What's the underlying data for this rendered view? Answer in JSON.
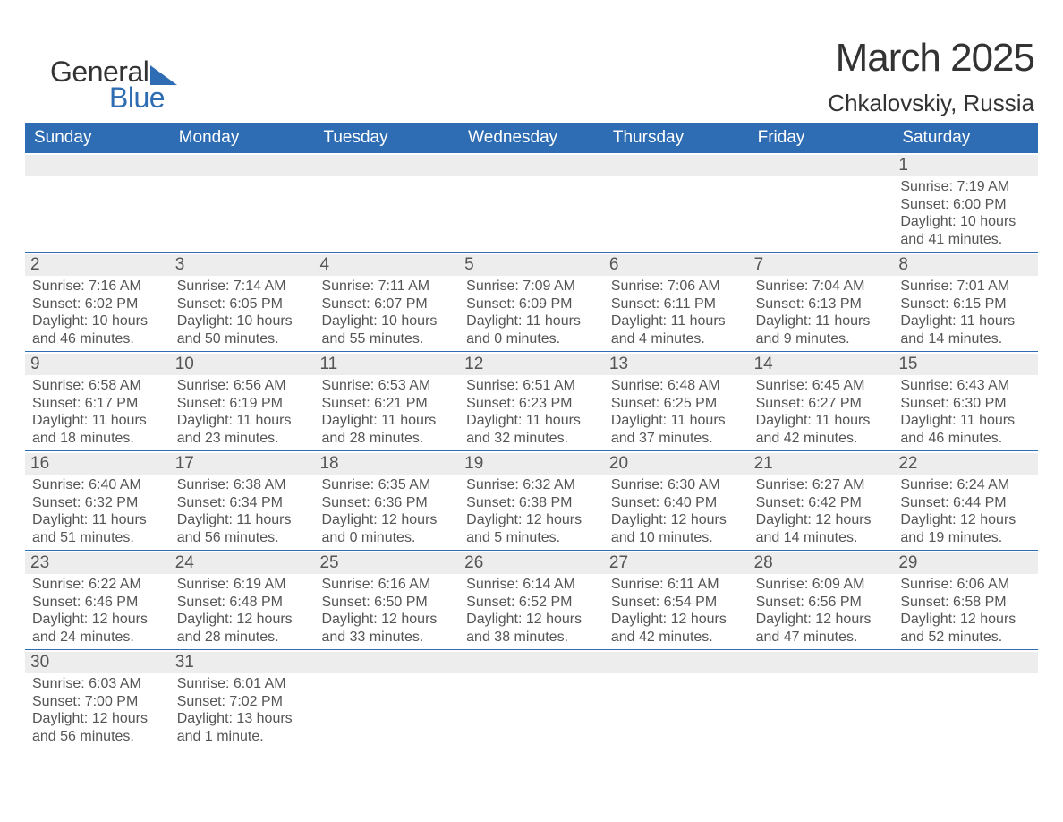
{
  "brand": {
    "word1": "General",
    "word2": "Blue",
    "accent_color": "#2e6db3"
  },
  "title": "March 2025",
  "subtitle": "Chkalovskiy, Russia",
  "colors": {
    "header_bg": "#2e6db3",
    "header_text": "#ffffff",
    "daynum_bg": "#ededed",
    "text": "#555555",
    "page_bg": "#ffffff",
    "cell_border": "#2e6db3"
  },
  "fonts": {
    "title_size": 44,
    "subtitle_size": 26,
    "weekday_size": 19,
    "daynum_size": 19,
    "body_size": 16
  },
  "layout": {
    "columns": 7,
    "rows": 6,
    "first_day_column": 6
  },
  "weekdays": [
    "Sunday",
    "Monday",
    "Tuesday",
    "Wednesday",
    "Thursday",
    "Friday",
    "Saturday"
  ],
  "labels": {
    "sunrise": "Sunrise:",
    "sunset": "Sunset:",
    "daylight": "Daylight:"
  },
  "days": [
    {
      "n": 1,
      "sunrise": "7:19 AM",
      "sunset": "6:00 PM",
      "daylight": "10 hours and 41 minutes."
    },
    {
      "n": 2,
      "sunrise": "7:16 AM",
      "sunset": "6:02 PM",
      "daylight": "10 hours and 46 minutes."
    },
    {
      "n": 3,
      "sunrise": "7:14 AM",
      "sunset": "6:05 PM",
      "daylight": "10 hours and 50 minutes."
    },
    {
      "n": 4,
      "sunrise": "7:11 AM",
      "sunset": "6:07 PM",
      "daylight": "10 hours and 55 minutes."
    },
    {
      "n": 5,
      "sunrise": "7:09 AM",
      "sunset": "6:09 PM",
      "daylight": "11 hours and 0 minutes."
    },
    {
      "n": 6,
      "sunrise": "7:06 AM",
      "sunset": "6:11 PM",
      "daylight": "11 hours and 4 minutes."
    },
    {
      "n": 7,
      "sunrise": "7:04 AM",
      "sunset": "6:13 PM",
      "daylight": "11 hours and 9 minutes."
    },
    {
      "n": 8,
      "sunrise": "7:01 AM",
      "sunset": "6:15 PM",
      "daylight": "11 hours and 14 minutes."
    },
    {
      "n": 9,
      "sunrise": "6:58 AM",
      "sunset": "6:17 PM",
      "daylight": "11 hours and 18 minutes."
    },
    {
      "n": 10,
      "sunrise": "6:56 AM",
      "sunset": "6:19 PM",
      "daylight": "11 hours and 23 minutes."
    },
    {
      "n": 11,
      "sunrise": "6:53 AM",
      "sunset": "6:21 PM",
      "daylight": "11 hours and 28 minutes."
    },
    {
      "n": 12,
      "sunrise": "6:51 AM",
      "sunset": "6:23 PM",
      "daylight": "11 hours and 32 minutes."
    },
    {
      "n": 13,
      "sunrise": "6:48 AM",
      "sunset": "6:25 PM",
      "daylight": "11 hours and 37 minutes."
    },
    {
      "n": 14,
      "sunrise": "6:45 AM",
      "sunset": "6:27 PM",
      "daylight": "11 hours and 42 minutes."
    },
    {
      "n": 15,
      "sunrise": "6:43 AM",
      "sunset": "6:30 PM",
      "daylight": "11 hours and 46 minutes."
    },
    {
      "n": 16,
      "sunrise": "6:40 AM",
      "sunset": "6:32 PM",
      "daylight": "11 hours and 51 minutes."
    },
    {
      "n": 17,
      "sunrise": "6:38 AM",
      "sunset": "6:34 PM",
      "daylight": "11 hours and 56 minutes."
    },
    {
      "n": 18,
      "sunrise": "6:35 AM",
      "sunset": "6:36 PM",
      "daylight": "12 hours and 0 minutes."
    },
    {
      "n": 19,
      "sunrise": "6:32 AM",
      "sunset": "6:38 PM",
      "daylight": "12 hours and 5 minutes."
    },
    {
      "n": 20,
      "sunrise": "6:30 AM",
      "sunset": "6:40 PM",
      "daylight": "12 hours and 10 minutes."
    },
    {
      "n": 21,
      "sunrise": "6:27 AM",
      "sunset": "6:42 PM",
      "daylight": "12 hours and 14 minutes."
    },
    {
      "n": 22,
      "sunrise": "6:24 AM",
      "sunset": "6:44 PM",
      "daylight": "12 hours and 19 minutes."
    },
    {
      "n": 23,
      "sunrise": "6:22 AM",
      "sunset": "6:46 PM",
      "daylight": "12 hours and 24 minutes."
    },
    {
      "n": 24,
      "sunrise": "6:19 AM",
      "sunset": "6:48 PM",
      "daylight": "12 hours and 28 minutes."
    },
    {
      "n": 25,
      "sunrise": "6:16 AM",
      "sunset": "6:50 PM",
      "daylight": "12 hours and 33 minutes."
    },
    {
      "n": 26,
      "sunrise": "6:14 AM",
      "sunset": "6:52 PM",
      "daylight": "12 hours and 38 minutes."
    },
    {
      "n": 27,
      "sunrise": "6:11 AM",
      "sunset": "6:54 PM",
      "daylight": "12 hours and 42 minutes."
    },
    {
      "n": 28,
      "sunrise": "6:09 AM",
      "sunset": "6:56 PM",
      "daylight": "12 hours and 47 minutes."
    },
    {
      "n": 29,
      "sunrise": "6:06 AM",
      "sunset": "6:58 PM",
      "daylight": "12 hours and 52 minutes."
    },
    {
      "n": 30,
      "sunrise": "6:03 AM",
      "sunset": "7:00 PM",
      "daylight": "12 hours and 56 minutes."
    },
    {
      "n": 31,
      "sunrise": "6:01 AM",
      "sunset": "7:02 PM",
      "daylight": "13 hours and 1 minute."
    }
  ]
}
